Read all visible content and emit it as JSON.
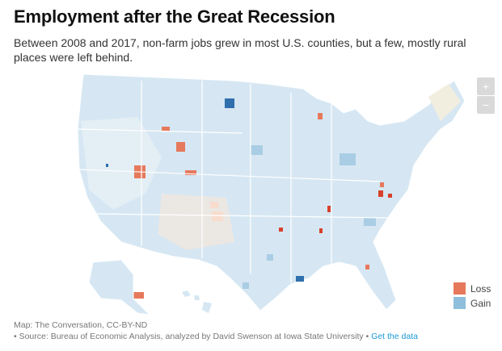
{
  "title": "Employment after the Great Recession",
  "subtitle": "Between 2008 and 2017, non-farm jobs grew in most U.S. counties, but a few, mostly rural places were left behind.",
  "zoom_controls": {
    "zoom_in": "+",
    "zoom_out": "−"
  },
  "legend": [
    {
      "label": "Loss",
      "color": "#e6795c"
    },
    {
      "label": "Gain",
      "color": "#8fbfdc"
    }
  ],
  "colors": {
    "gain_light": "#d6e7f3",
    "gain_dark": "#2f6fae",
    "loss_light": "#f8dccd",
    "loss_dark": "#d7412b",
    "neutral": "#eef2ea"
  },
  "footer": {
    "credit": "Map: The Conversation, CC-BY-ND",
    "source": "• Source: Bureau of Economic Analysis, analyzed by David Swenson at Iowa State University •",
    "link": "Get the data"
  }
}
